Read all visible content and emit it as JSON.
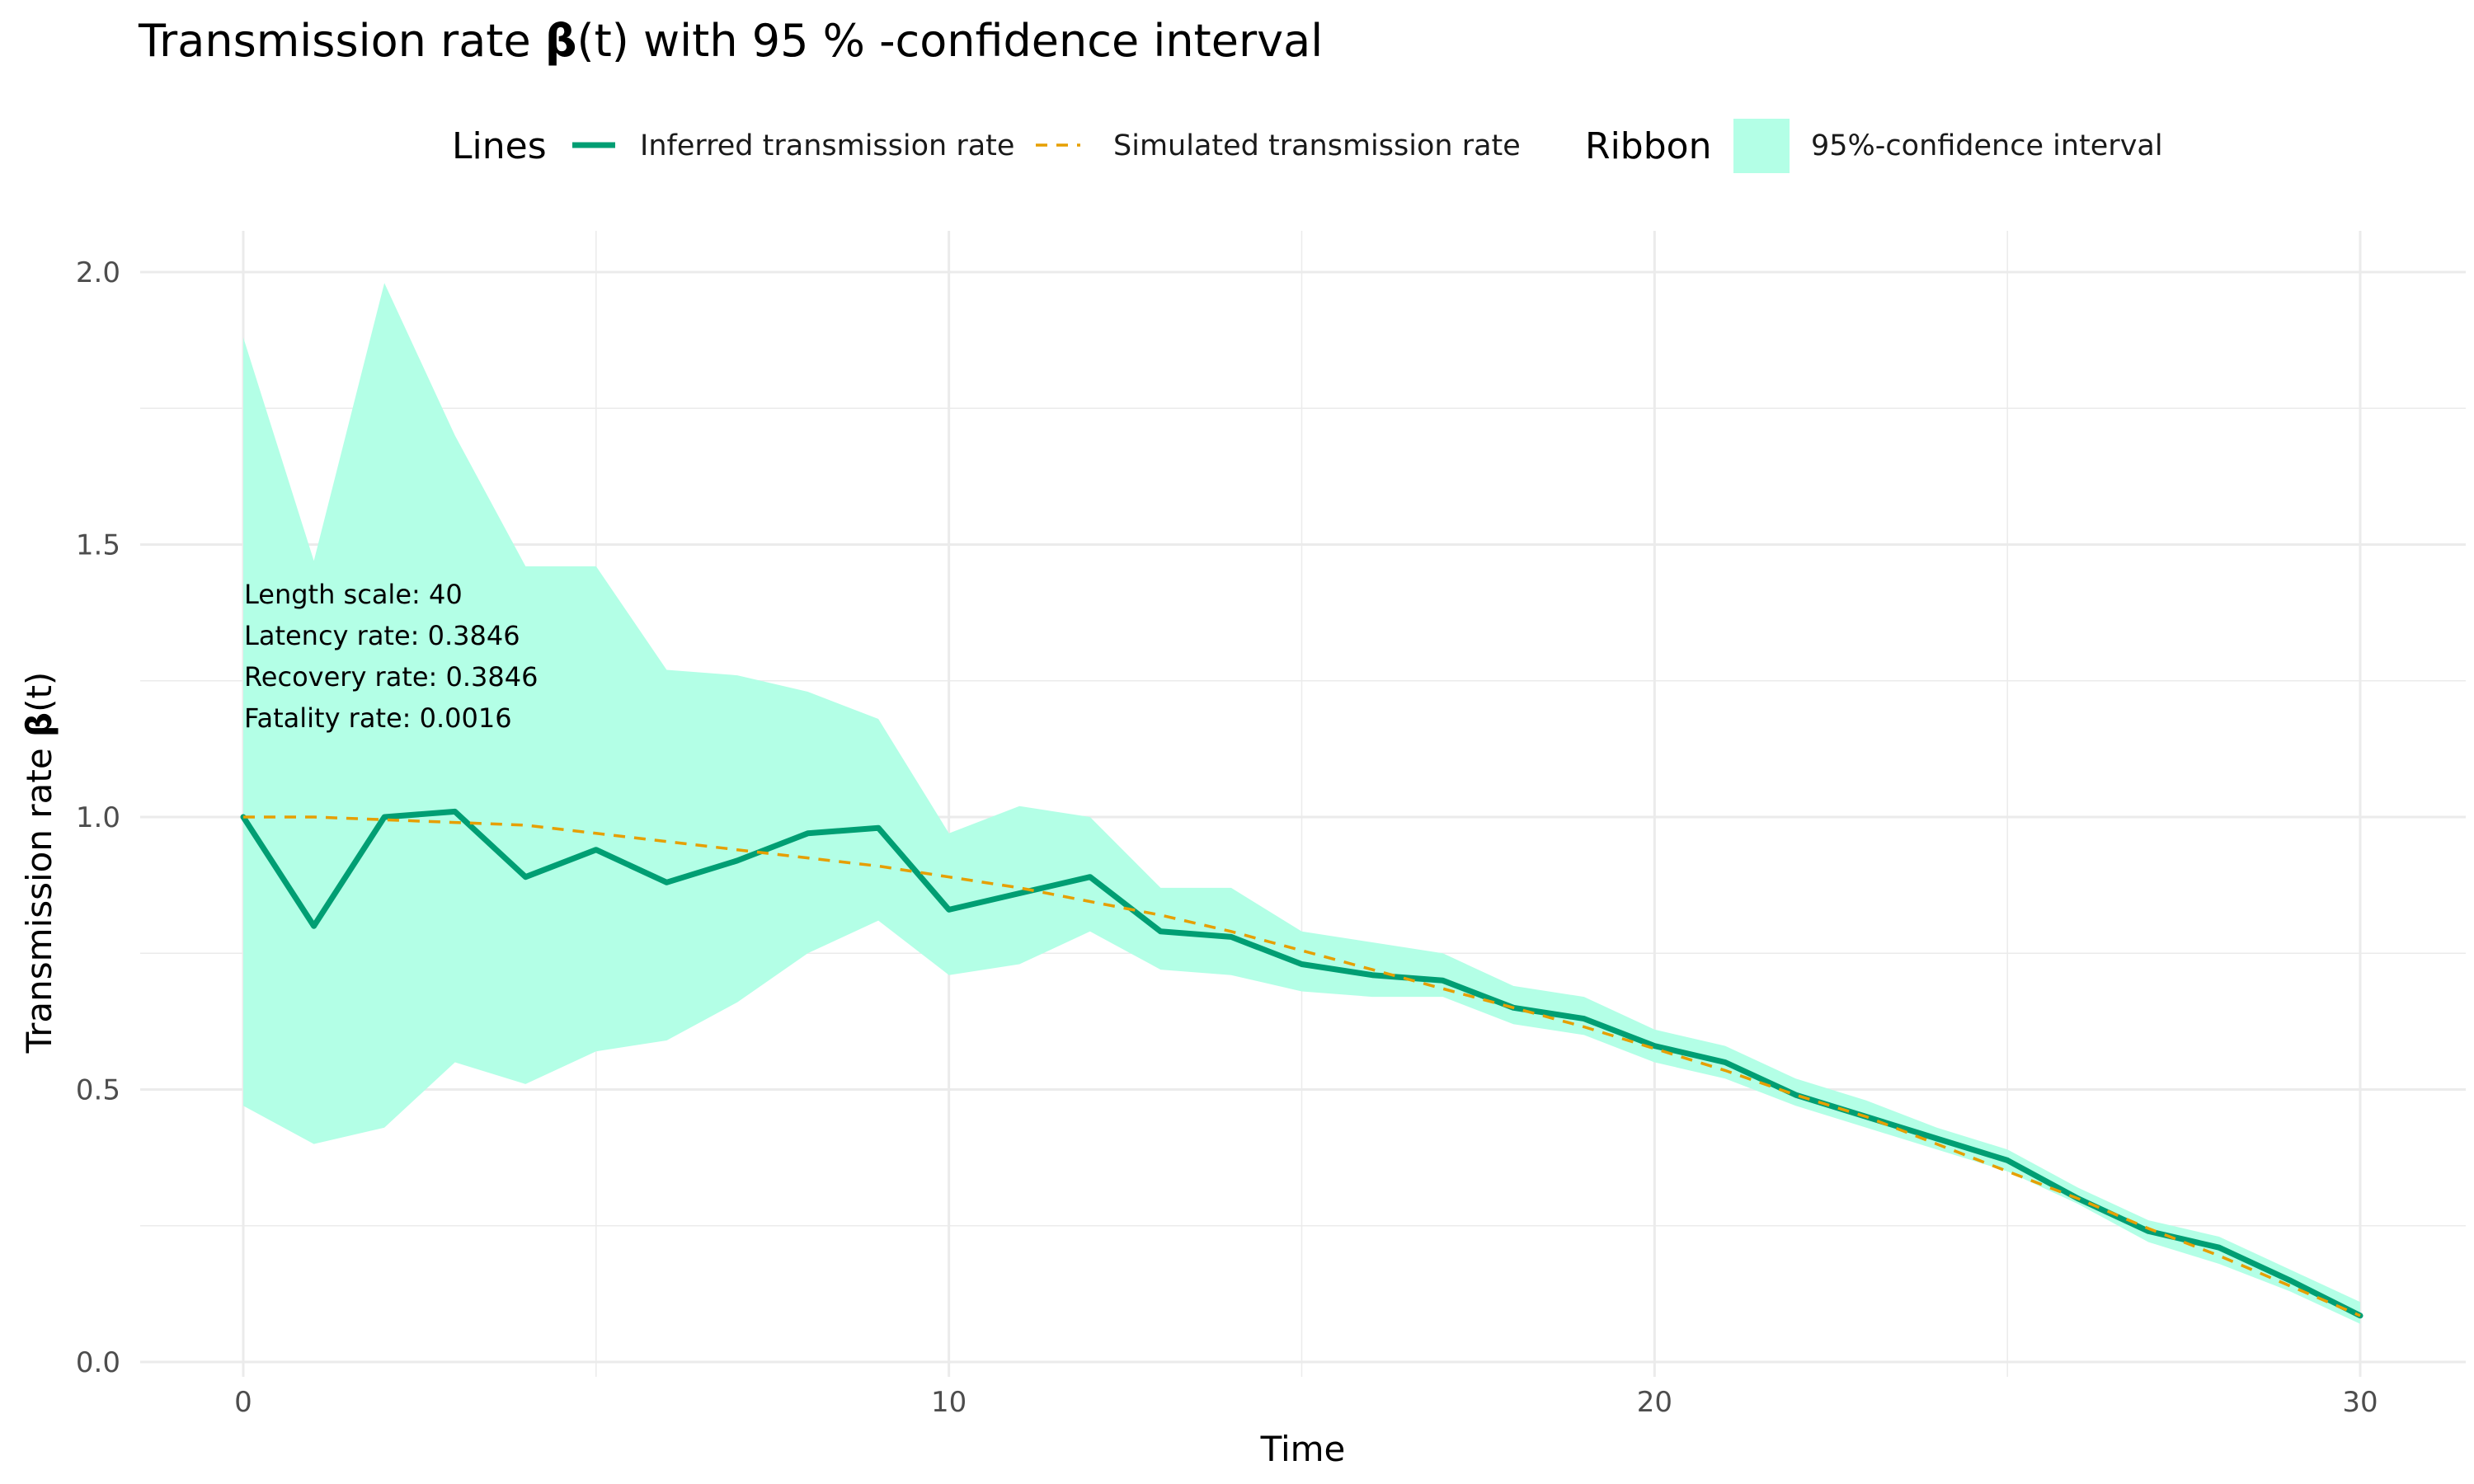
{
  "chart_data": {
    "type": "line",
    "title_prefix": "Transmission rate ",
    "title_symbol": "β",
    "title_suffix": "(t) with 95 % -confidence interval",
    "xlabel": "Time",
    "ylabel_prefix": "Transmission rate ",
    "ylabel_symbol": "β",
    "ylabel_suffix": "(t)",
    "xlim": [
      -3,
      31.5
    ],
    "ylim": [
      0,
      2.0
    ],
    "x_ticks": [
      0,
      10,
      20,
      30
    ],
    "x_tick_labels": [
      "0",
      "10",
      "20",
      "30"
    ],
    "y_ticks": [
      0,
      0.5,
      1.0,
      1.5,
      2.0
    ],
    "y_tick_labels": [
      "0.0",
      "0.5",
      "1.0",
      "1.5",
      "2.0"
    ],
    "grid": true,
    "legend": {
      "position": "top",
      "lines_title": "Lines",
      "ribbon_title": "Ribbon",
      "entries": [
        {
          "label": "Inferred transmission rate",
          "kind": "solid",
          "color": "#009E73"
        },
        {
          "label": "Simulated transmission rate",
          "kind": "dashed",
          "color": "#E69F00"
        },
        {
          "label": "95%-confidence interval",
          "kind": "ribbon",
          "color": "#B3FFE6"
        }
      ]
    },
    "annotations": [
      "Length scale: 40",
      "Latency rate: 0.3846",
      "Recovery rate: 0.3846",
      "Fatality rate: 0.0016"
    ],
    "x": [
      0,
      1,
      2,
      3,
      4,
      5,
      6,
      7,
      8,
      9,
      10,
      11,
      12,
      13,
      14,
      15,
      16,
      17,
      18,
      19,
      20,
      21,
      22,
      23,
      24,
      25,
      26,
      27,
      28,
      29,
      30
    ],
    "series": [
      {
        "name": "Inferred transmission rate",
        "color": "#009E73",
        "values": [
          1.0,
          0.8,
          1.0,
          1.01,
          0.89,
          0.94,
          0.88,
          0.92,
          0.97,
          0.98,
          0.83,
          0.86,
          0.89,
          0.79,
          0.78,
          0.73,
          0.71,
          0.7,
          0.65,
          0.63,
          0.58,
          0.55,
          0.49,
          0.45,
          0.41,
          0.37,
          0.3,
          0.24,
          0.21,
          0.15,
          0.085
        ]
      },
      {
        "name": "Simulated transmission rate",
        "color": "#E69F00",
        "values": [
          1.0,
          1.0,
          0.995,
          0.99,
          0.985,
          0.97,
          0.955,
          0.94,
          0.925,
          0.91,
          0.89,
          0.87,
          0.845,
          0.82,
          0.79,
          0.755,
          0.72,
          0.685,
          0.65,
          0.615,
          0.575,
          0.535,
          0.49,
          0.45,
          0.4,
          0.35,
          0.3,
          0.245,
          0.195,
          0.14,
          0.085
        ]
      }
    ],
    "ribbon": {
      "name": "95%-confidence interval",
      "color": "#B3FFE6",
      "lower": [
        0.47,
        0.4,
        0.43,
        0.55,
        0.51,
        0.57,
        0.59,
        0.66,
        0.75,
        0.81,
        0.71,
        0.73,
        0.79,
        0.72,
        0.71,
        0.68,
        0.67,
        0.67,
        0.62,
        0.6,
        0.55,
        0.52,
        0.47,
        0.43,
        0.39,
        0.35,
        0.29,
        0.22,
        0.18,
        0.13,
        0.07
      ],
      "upper": [
        1.88,
        1.47,
        1.98,
        1.7,
        1.46,
        1.46,
        1.27,
        1.26,
        1.23,
        1.18,
        0.97,
        1.02,
        1.0,
        0.87,
        0.87,
        0.79,
        0.77,
        0.75,
        0.69,
        0.67,
        0.61,
        0.58,
        0.52,
        0.48,
        0.43,
        0.39,
        0.32,
        0.26,
        0.23,
        0.17,
        0.11
      ]
    }
  }
}
